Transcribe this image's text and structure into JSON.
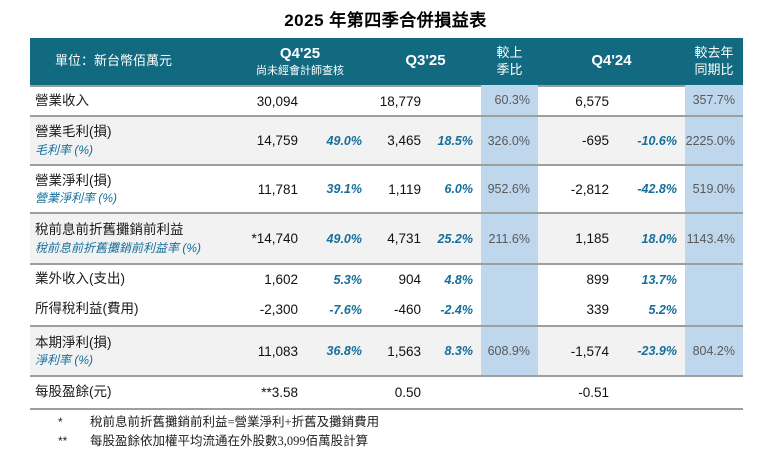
{
  "title": "2025 年第四季合併損益表",
  "colors": {
    "header_bg": "#116a80",
    "strip_bg": "#bfd7ec",
    "shade_bg": "#f2f2f2",
    "border": "#9e9e9e",
    "accent": "#156f9c",
    "ratio_text": "#595959"
  },
  "table": {
    "header": {
      "unit_label": "單位：新台幣佰萬元",
      "q425_label": "Q4'25",
      "q425_sub": "尚未經會計師查核",
      "q325_label": "Q3'25",
      "qoq_line1": "較上",
      "qoq_line2": "季比",
      "q424_label": "Q4'24",
      "yoy_line1": "較去年",
      "yoy_line2": "同期比"
    },
    "rows": [
      {
        "label": "營業收入",
        "q425": "30,094",
        "q425_pct": "",
        "q325": "18,779",
        "q325_pct": "",
        "qoq": "60.3%",
        "q424": "6,575",
        "q424_pct": "",
        "yoy": "357.7%"
      },
      {
        "label": "營業毛利(損)",
        "sublabel": "毛利率 (%)",
        "q425": "14,759",
        "q425_pct": "49.0%",
        "q325": "3,465",
        "q325_pct": "18.5%",
        "qoq": "326.0%",
        "q424": "-695",
        "q424_pct": "-10.6%",
        "yoy": "2225.0%"
      },
      {
        "label": "營業淨利(損)",
        "sublabel": "營業淨利率 (%)",
        "q425": "11,781",
        "q425_pct": "39.1%",
        "q325": "1,119",
        "q325_pct": "6.0%",
        "qoq": "952.6%",
        "q424": "-2,812",
        "q424_pct": "-42.8%",
        "yoy": "519.0%"
      },
      {
        "label": "稅前息前折舊攤銷前利益",
        "sublabel": "稅前息前折舊攤銷前利益率 (%)",
        "q425": "*14,740",
        "q425_pct": "49.0%",
        "q325": "4,731",
        "q325_pct": "25.2%",
        "qoq": "211.6%",
        "q424": "1,185",
        "q424_pct": "18.0%",
        "yoy": "1143.4%"
      },
      {
        "label": "業外收入(支出)",
        "q425": "1,602",
        "q425_pct": "5.3%",
        "q325": "904",
        "q325_pct": "4.8%",
        "qoq": "",
        "q424": "899",
        "q424_pct": "13.7%",
        "yoy": ""
      },
      {
        "label": "所得稅利益(費用)",
        "q425": "-2,300",
        "q425_pct": "-7.6%",
        "q325": "-460",
        "q325_pct": "-2.4%",
        "qoq": "",
        "q424": "339",
        "q424_pct": "5.2%",
        "yoy": ""
      },
      {
        "label": "本期淨利(損)",
        "sublabel": "淨利率 (%)",
        "q425": "11,083",
        "q425_pct": "36.8%",
        "q325": "1,563",
        "q325_pct": "8.3%",
        "qoq": "608.9%",
        "q424": "-1,574",
        "q424_pct": "-23.9%",
        "yoy": "804.2%"
      },
      {
        "label": "每股盈餘(元)",
        "q425": "**3.58",
        "q425_pct": "",
        "q325": "0.50",
        "q325_pct": "",
        "qoq": "",
        "q424": "-0.51",
        "q424_pct": "",
        "yoy": ""
      }
    ]
  },
  "footnotes": [
    {
      "marker": "*",
      "text": "稅前息前折舊攤銷前利益=營業淨利+折舊及攤銷費用"
    },
    {
      "marker": "**",
      "text": "每股盈餘依加權平均流通在外股數3,099佰萬股計算"
    }
  ]
}
